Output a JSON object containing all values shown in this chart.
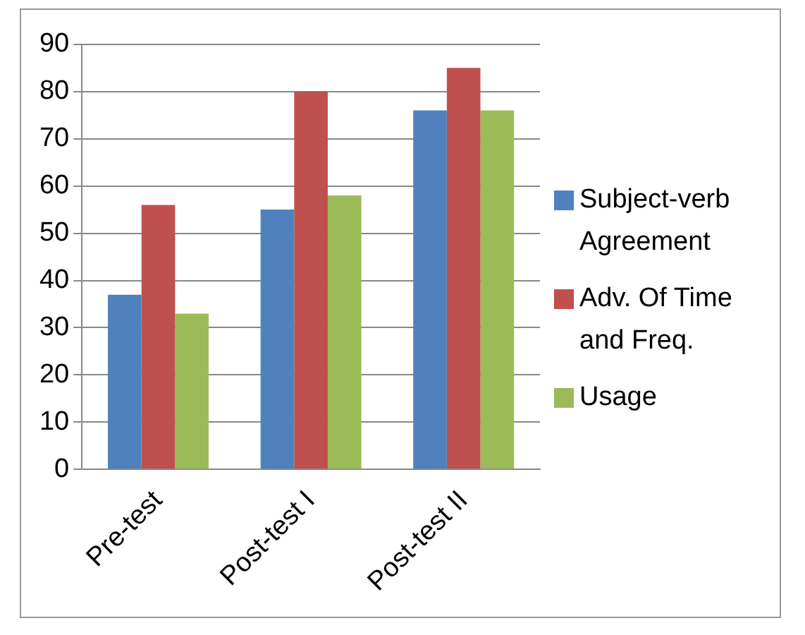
{
  "chart_data": {
    "type": "bar",
    "categories": [
      "Pre-test",
      "Post-test I",
      "Post-test II"
    ],
    "series": [
      {
        "name": "Subject-verb Agreement",
        "color": "#4f81bd",
        "values": [
          37,
          55,
          76
        ]
      },
      {
        "name": "Adv. Of Time and Freq.",
        "color": "#c0504d",
        "values": [
          56,
          80,
          85
        ]
      },
      {
        "name": "Usage",
        "color": "#9bbb59",
        "values": [
          33,
          58,
          76
        ]
      }
    ],
    "ylim": [
      0,
      90
    ],
    "yticks": [
      0,
      10,
      20,
      30,
      40,
      50,
      60,
      70,
      80,
      90
    ],
    "grid": "y",
    "legend": "right"
  }
}
